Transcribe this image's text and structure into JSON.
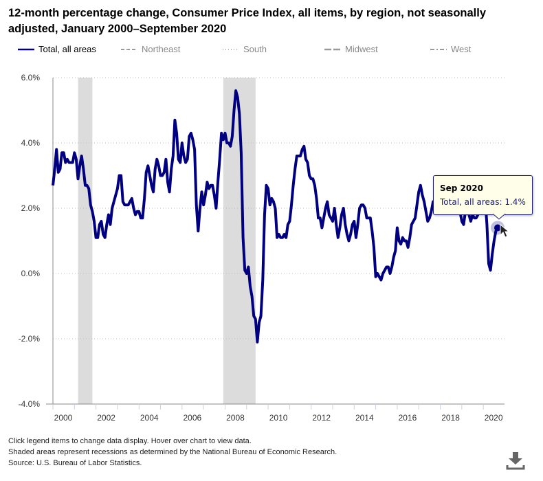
{
  "title": "12-month percentage change, Consumer Price Index, all items, by region, not seasonally adjusted, January 2000–September 2020",
  "legend": [
    {
      "label": "Total, all areas",
      "color": "#000080",
      "style": "solid",
      "active": true
    },
    {
      "label": "Northeast",
      "color": "#999999",
      "style": "dashed",
      "active": false
    },
    {
      "label": "South",
      "color": "#999999",
      "style": "dotted",
      "active": false
    },
    {
      "label": "Midwest",
      "color": "#999999",
      "style": "long-dash",
      "active": false
    },
    {
      "label": "West",
      "color": "#999999",
      "style": "dash-dot",
      "active": false
    }
  ],
  "tooltip": {
    "date": "Sep 2020",
    "text": "Total, all areas: 1.4%"
  },
  "notes": [
    "Click legend items to change data display. Hover over chart to view data.",
    "Shaded areas represent recessions as determined by the National Bureau of Economic Research.",
    "Source: U.S. Bureau of Labor Statistics."
  ],
  "download_icon": "download-icon",
  "chart_data": {
    "type": "line",
    "title": "12-month percentage change, Consumer Price Index, all items, by region, not seasonally adjusted, January 2000–September 2020",
    "xlabel": "",
    "ylabel": "",
    "x_start": "2000-01",
    "x_end": "2020-09",
    "x_frequency": "monthly",
    "x_tick_labels": [
      "2000",
      "2002",
      "2004",
      "2006",
      "2008",
      "2010",
      "2012",
      "2014",
      "2016",
      "2018",
      "2020"
    ],
    "ylim": [
      -4,
      6
    ],
    "y_ticks": [
      -4,
      -2,
      0,
      2,
      4,
      6
    ],
    "y_tick_labels": [
      "-4.0%",
      "-2.0%",
      "0.0%",
      "2.0%",
      "4.0%",
      "6.0%"
    ],
    "grid": "horizontal dotted",
    "legend_position": "top-left",
    "recessions": [
      {
        "start": "2001-03",
        "end": "2001-11"
      },
      {
        "start": "2007-12",
        "end": "2009-06"
      }
    ],
    "series": [
      {
        "name": "Total, all areas",
        "color": "#000080",
        "values": [
          2.7,
          3.2,
          3.8,
          3.1,
          3.2,
          3.7,
          3.7,
          3.4,
          3.5,
          3.4,
          3.4,
          3.4,
          3.7,
          3.5,
          2.9,
          3.3,
          3.6,
          3.2,
          2.7,
          2.7,
          2.6,
          2.1,
          1.9,
          1.6,
          1.1,
          1.1,
          1.5,
          1.6,
          1.2,
          1.1,
          1.5,
          1.8,
          1.5,
          2.0,
          2.2,
          2.4,
          2.6,
          3.0,
          3.0,
          2.2,
          2.1,
          2.1,
          2.1,
          2.2,
          2.3,
          2.0,
          1.8,
          1.9,
          1.9,
          1.7,
          1.7,
          2.3,
          3.1,
          3.3,
          3.0,
          2.7,
          2.5,
          3.2,
          3.5,
          3.3,
          3.0,
          3.0,
          3.1,
          3.5,
          2.8,
          2.5,
          3.2,
          3.6,
          4.7,
          4.3,
          3.5,
          3.4,
          4.0,
          3.6,
          3.4,
          3.5,
          4.2,
          4.3,
          4.1,
          3.8,
          2.1,
          1.3,
          2.0,
          2.5,
          2.1,
          2.4,
          2.8,
          2.6,
          2.7,
          2.7,
          2.4,
          2.0,
          2.8,
          3.5,
          4.3,
          4.1,
          4.3,
          4.0,
          4.0,
          3.9,
          4.2,
          5.0,
          5.6,
          5.4,
          4.9,
          3.7,
          1.1,
          0.1,
          0.0,
          0.2,
          -0.4,
          -0.7,
          -1.3,
          -1.4,
          -2.1,
          -1.5,
          -1.3,
          -0.2,
          1.8,
          2.7,
          2.6,
          2.1,
          2.3,
          2.2,
          2.0,
          1.1,
          1.2,
          1.1,
          1.1,
          1.2,
          1.1,
          1.5,
          1.6,
          2.1,
          2.7,
          3.2,
          3.6,
          3.6,
          3.6,
          3.8,
          3.9,
          3.5,
          3.4,
          3.0,
          2.9,
          2.9,
          2.7,
          2.3,
          1.7,
          1.7,
          1.4,
          1.7,
          2.0,
          2.2,
          1.8,
          1.7,
          1.6,
          2.0,
          1.5,
          1.1,
          1.4,
          1.8,
          2.0,
          1.5,
          1.2,
          1.0,
          1.2,
          1.5,
          1.6,
          1.1,
          1.5,
          2.0,
          2.1,
          2.1,
          2.0,
          1.7,
          1.7,
          1.7,
          1.3,
          0.8,
          -0.1,
          0.0,
          -0.1,
          -0.2,
          0.0,
          0.1,
          0.2,
          0.2,
          0.0,
          0.2,
          0.5,
          0.7,
          1.4,
          1.0,
          0.9,
          1.1,
          1.0,
          1.0,
          0.8,
          1.1,
          1.5,
          1.6,
          1.7,
          2.1,
          2.5,
          2.7,
          2.4,
          2.2,
          1.9,
          1.6,
          1.7,
          1.9,
          2.2,
          2.0,
          2.2,
          2.1,
          2.1,
          2.2,
          2.4,
          2.5,
          2.8,
          2.9,
          2.9,
          2.7,
          2.3,
          2.5,
          2.2,
          1.9,
          1.6,
          1.5,
          1.9,
          2.0,
          1.8,
          1.6,
          1.8,
          1.7,
          1.7,
          1.8,
          2.1,
          2.3,
          2.5,
          2.3,
          1.5,
          0.3,
          0.1,
          0.6,
          1.0,
          1.3,
          1.4
        ]
      }
    ]
  }
}
